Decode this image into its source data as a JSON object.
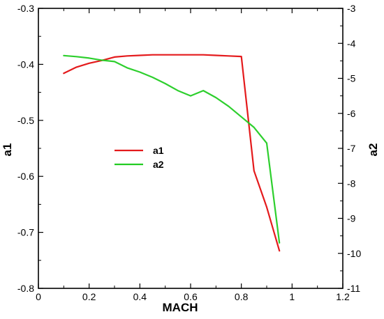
{
  "chart_data": {
    "type": "line",
    "xlabel": "MACH",
    "ylabel_left": "a1",
    "ylabel_right": "a2",
    "xlim": [
      0,
      1.2
    ],
    "ylim_left": [
      -0.8,
      -0.3
    ],
    "ylim_right": [
      -11,
      -3
    ],
    "x_ticks": [
      "0",
      "0.2",
      "0.4",
      "0.6",
      "0.8",
      "1",
      "1.2"
    ],
    "y_left_ticks": [
      "-0.8",
      "-0.7",
      "-0.6",
      "-0.5",
      "-0.4",
      "-0.3"
    ],
    "y_right_ticks": [
      "-11",
      "-10",
      "-9",
      "-8",
      "-7",
      "-6",
      "-5",
      "-4",
      "-3"
    ],
    "legend": {
      "placement": "center-left"
    },
    "series": [
      {
        "name": "a1",
        "axis": "left",
        "color": "#e41a1c",
        "x": [
          0.1,
          0.15,
          0.2,
          0.25,
          0.3,
          0.35,
          0.4,
          0.45,
          0.5,
          0.55,
          0.6,
          0.65,
          0.7,
          0.75,
          0.8,
          0.85,
          0.9,
          0.95
        ],
        "y": [
          -0.416,
          -0.405,
          -0.398,
          -0.393,
          -0.387,
          -0.385,
          -0.384,
          -0.383,
          -0.383,
          -0.383,
          -0.383,
          -0.383,
          -0.384,
          -0.385,
          -0.386,
          -0.59,
          -0.655,
          -0.733
        ]
      },
      {
        "name": "a2",
        "axis": "right",
        "color": "#22cc22",
        "x": [
          0.1,
          0.15,
          0.2,
          0.25,
          0.3,
          0.35,
          0.4,
          0.45,
          0.5,
          0.55,
          0.6,
          0.65,
          0.7,
          0.75,
          0.8,
          0.85,
          0.9,
          0.95
        ],
        "y": [
          -4.35,
          -4.38,
          -4.42,
          -4.48,
          -4.52,
          -4.7,
          -4.82,
          -4.97,
          -5.15,
          -5.35,
          -5.5,
          -5.35,
          -5.55,
          -5.8,
          -6.1,
          -6.4,
          -6.85,
          -9.7
        ]
      }
    ]
  }
}
